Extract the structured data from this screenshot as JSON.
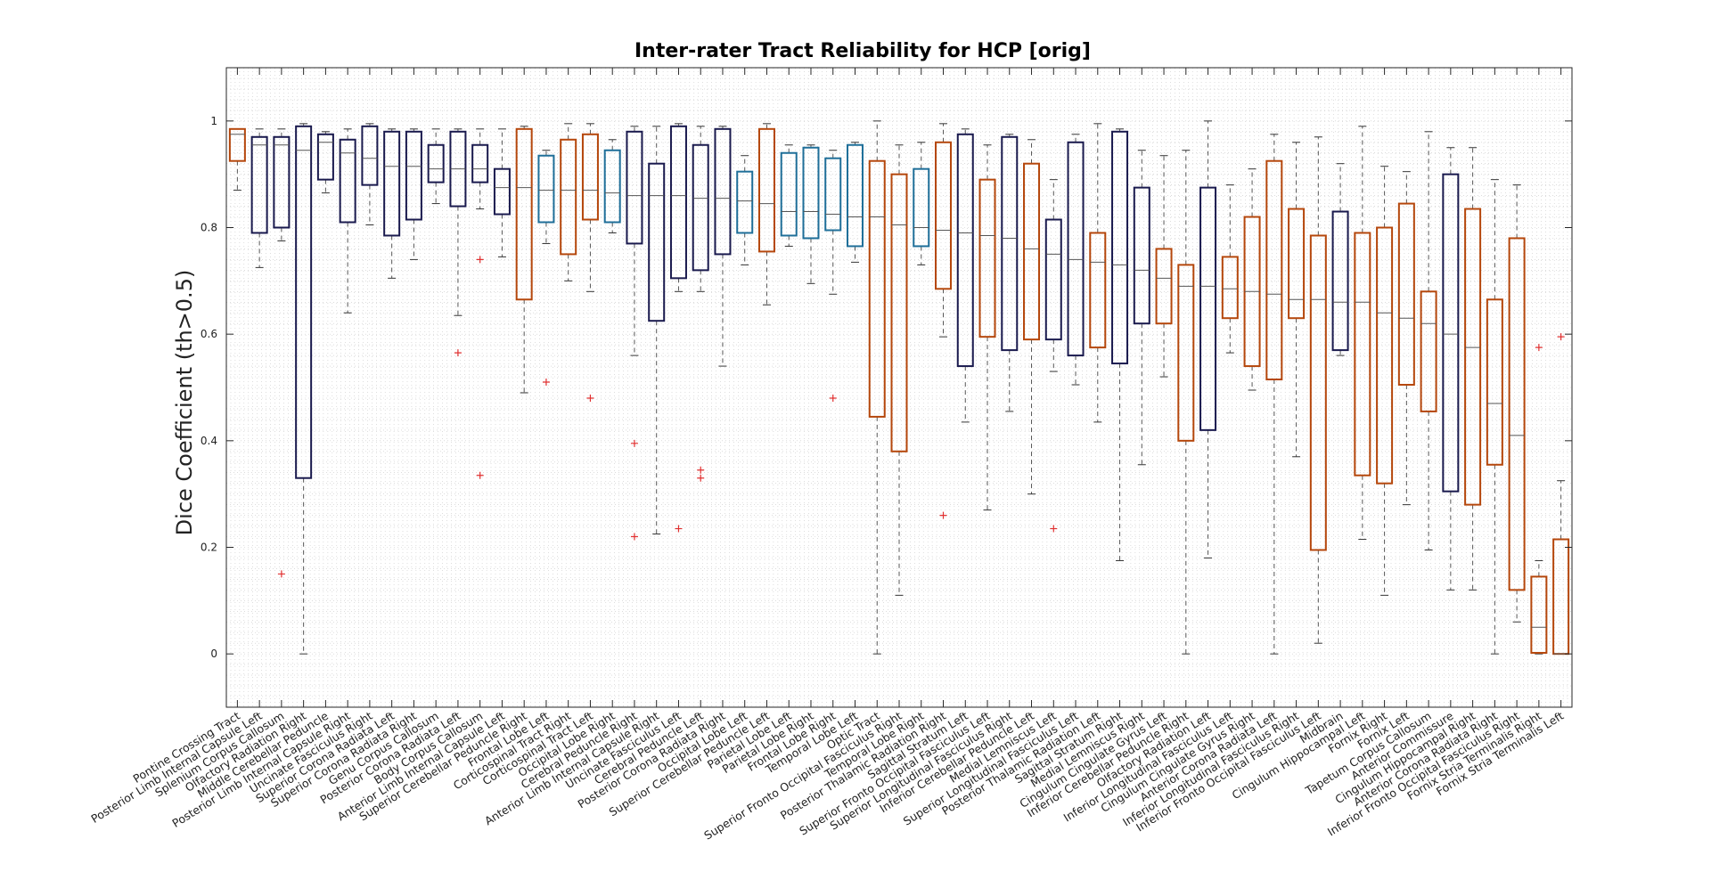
{
  "chart_data": {
    "type": "boxplot",
    "title": "Inter-rater Tract Reliability for HCP [orig]",
    "xlabel": "",
    "ylabel": "Dice Coefficient (th>0.5)",
    "ylim": [
      -0.1,
      1.1
    ],
    "yticks": [
      0,
      0.2,
      0.4,
      0.6,
      0.8,
      1
    ],
    "grid": true,
    "legend": "none",
    "colors": {
      "navy": "#1a1a4e",
      "orange": "#b5470c",
      "blue": "#1f6f99",
      "outlier": "#e03030",
      "whisker": "#555555",
      "median": "#555555"
    },
    "categories": [
      {
        "name": "Pontine Crossing Tract",
        "color": "orange",
        "q1": 0.925,
        "median": 0.975,
        "q3": 0.985,
        "lw": 0.87,
        "uw": 0.985,
        "outliers": []
      },
      {
        "name": "Posterior Limb Internal Capsule Left",
        "color": "navy",
        "q1": 0.79,
        "median": 0.955,
        "q3": 0.97,
        "lw": 0.725,
        "uw": 0.985,
        "outliers": []
      },
      {
        "name": "Splenium Corpus Callosum",
        "color": "navy",
        "q1": 0.8,
        "median": 0.955,
        "q3": 0.97,
        "lw": 0.775,
        "uw": 0.985,
        "outliers": [
          0.15
        ]
      },
      {
        "name": "Olfactory Radiation Right",
        "color": "navy",
        "q1": 0.33,
        "median": 0.945,
        "q3": 0.99,
        "lw": 0.0,
        "uw": 0.995,
        "outliers": []
      },
      {
        "name": "Middle Cerebellar Peduncle",
        "color": "navy",
        "q1": 0.89,
        "median": 0.96,
        "q3": 0.975,
        "lw": 0.865,
        "uw": 0.98,
        "outliers": []
      },
      {
        "name": "Posterior Limb Internal Capsule Right",
        "color": "navy",
        "q1": 0.81,
        "median": 0.94,
        "q3": 0.965,
        "lw": 0.64,
        "uw": 0.985,
        "outliers": []
      },
      {
        "name": "Uncinate Fasciculus Right",
        "color": "navy",
        "q1": 0.88,
        "median": 0.93,
        "q3": 0.99,
        "lw": 0.805,
        "uw": 0.995,
        "outliers": []
      },
      {
        "name": "Superior Corona Radiata Left",
        "color": "navy",
        "q1": 0.785,
        "median": 0.915,
        "q3": 0.98,
        "lw": 0.705,
        "uw": 0.985,
        "outliers": []
      },
      {
        "name": "Superior Corona Radiata Right",
        "color": "navy",
        "q1": 0.815,
        "median": 0.915,
        "q3": 0.98,
        "lw": 0.74,
        "uw": 0.985,
        "outliers": []
      },
      {
        "name": "Genu Corpus Callosum",
        "color": "navy",
        "q1": 0.885,
        "median": 0.91,
        "q3": 0.955,
        "lw": 0.845,
        "uw": 0.985,
        "outliers": []
      },
      {
        "name": "Posterior Corona Radiata Left",
        "color": "navy",
        "q1": 0.84,
        "median": 0.91,
        "q3": 0.98,
        "lw": 0.635,
        "uw": 0.985,
        "outliers": [
          0.565
        ]
      },
      {
        "name": "Body Corpus Callosum",
        "color": "navy",
        "q1": 0.885,
        "median": 0.91,
        "q3": 0.955,
        "lw": 0.835,
        "uw": 0.985,
        "outliers": [
          0.74,
          0.335
        ]
      },
      {
        "name": "Anterior Limb Internal Capsule Left",
        "color": "navy",
        "q1": 0.825,
        "median": 0.875,
        "q3": 0.91,
        "lw": 0.745,
        "uw": 0.985,
        "outliers": []
      },
      {
        "name": "Superior Cerebellar Peduncle Right",
        "color": "orange",
        "q1": 0.665,
        "median": 0.875,
        "q3": 0.985,
        "lw": 0.49,
        "uw": 0.99,
        "outliers": []
      },
      {
        "name": "Frontal Lobe Left",
        "color": "blue",
        "q1": 0.81,
        "median": 0.87,
        "q3": 0.935,
        "lw": 0.77,
        "uw": 0.945,
        "outliers": [
          0.51
        ]
      },
      {
        "name": "Corticospinal Tract Right",
        "color": "orange",
        "q1": 0.75,
        "median": 0.87,
        "q3": 0.965,
        "lw": 0.7,
        "uw": 0.995,
        "outliers": []
      },
      {
        "name": "Corticospinal Tract Left",
        "color": "orange",
        "q1": 0.815,
        "median": 0.87,
        "q3": 0.975,
        "lw": 0.68,
        "uw": 0.995,
        "outliers": [
          0.48
        ]
      },
      {
        "name": "Occipital Lobe Right",
        "color": "blue",
        "q1": 0.81,
        "median": 0.865,
        "q3": 0.945,
        "lw": 0.79,
        "uw": 0.965,
        "outliers": []
      },
      {
        "name": "Cerebral Peduncle Right",
        "color": "navy",
        "q1": 0.77,
        "median": 0.86,
        "q3": 0.98,
        "lw": 0.56,
        "uw": 0.99,
        "outliers": [
          0.395,
          0.22
        ]
      },
      {
        "name": "Anterior Limb Internal Capsule Right",
        "color": "navy",
        "q1": 0.625,
        "median": 0.86,
        "q3": 0.92,
        "lw": 0.225,
        "uw": 0.99,
        "outliers": []
      },
      {
        "name": "Uncinate Fasciculus Left",
        "color": "navy",
        "q1": 0.705,
        "median": 0.86,
        "q3": 0.99,
        "lw": 0.68,
        "uw": 0.995,
        "outliers": [
          0.235
        ]
      },
      {
        "name": "Cerebral Peduncle Left",
        "color": "navy",
        "q1": 0.72,
        "median": 0.855,
        "q3": 0.955,
        "lw": 0.68,
        "uw": 0.99,
        "outliers": [
          0.345,
          0.33
        ]
      },
      {
        "name": "Posterior Corona Radiata Right",
        "color": "navy",
        "q1": 0.75,
        "median": 0.855,
        "q3": 0.985,
        "lw": 0.54,
        "uw": 0.99,
        "outliers": []
      },
      {
        "name": "Occipital Lobe Left",
        "color": "blue",
        "q1": 0.79,
        "median": 0.85,
        "q3": 0.905,
        "lw": 0.73,
        "uw": 0.935,
        "outliers": []
      },
      {
        "name": "Superior Cerebellar Peduncle Left",
        "color": "orange",
        "q1": 0.755,
        "median": 0.845,
        "q3": 0.985,
        "lw": 0.655,
        "uw": 0.995,
        "outliers": []
      },
      {
        "name": "Parietal Lobe Left",
        "color": "blue",
        "q1": 0.785,
        "median": 0.83,
        "q3": 0.94,
        "lw": 0.765,
        "uw": 0.955,
        "outliers": []
      },
      {
        "name": "Parietal Lobe Right",
        "color": "blue",
        "q1": 0.78,
        "median": 0.83,
        "q3": 0.95,
        "lw": 0.695,
        "uw": 0.955,
        "outliers": []
      },
      {
        "name": "Frontal Lobe Right",
        "color": "blue",
        "q1": 0.795,
        "median": 0.825,
        "q3": 0.93,
        "lw": 0.675,
        "uw": 0.945,
        "outliers": [
          0.48
        ]
      },
      {
        "name": "Temporal Lobe Left",
        "color": "blue",
        "q1": 0.765,
        "median": 0.82,
        "q3": 0.955,
        "lw": 0.735,
        "uw": 0.96,
        "outliers": []
      },
      {
        "name": "Optic Tract",
        "color": "orange",
        "q1": 0.445,
        "median": 0.82,
        "q3": 0.925,
        "lw": 0.0,
        "uw": 1.0,
        "outliers": []
      },
      {
        "name": "Superior Fronto Occipital Fasciculus Right",
        "color": "orange",
        "q1": 0.38,
        "median": 0.805,
        "q3": 0.9,
        "lw": 0.11,
        "uw": 0.955,
        "outliers": []
      },
      {
        "name": "Temporal Lobe Right",
        "color": "blue",
        "q1": 0.765,
        "median": 0.8,
        "q3": 0.91,
        "lw": 0.73,
        "uw": 0.96,
        "outliers": []
      },
      {
        "name": "Posterior Thalamic Radiation Right",
        "color": "orange",
        "q1": 0.685,
        "median": 0.795,
        "q3": 0.96,
        "lw": 0.595,
        "uw": 0.995,
        "outliers": [
          0.26
        ]
      },
      {
        "name": "Sagittal Stratum Left",
        "color": "navy",
        "q1": 0.54,
        "median": 0.79,
        "q3": 0.975,
        "lw": 0.435,
        "uw": 0.985,
        "outliers": []
      },
      {
        "name": "Superior Fronto Occipital Fasciculus Left",
        "color": "orange",
        "q1": 0.595,
        "median": 0.785,
        "q3": 0.89,
        "lw": 0.27,
        "uw": 0.955,
        "outliers": []
      },
      {
        "name": "Superior Longitudinal Fasciculus Right",
        "color": "navy",
        "q1": 0.57,
        "median": 0.78,
        "q3": 0.97,
        "lw": 0.455,
        "uw": 0.975,
        "outliers": []
      },
      {
        "name": "Inferior Cerebellar Peduncle Left",
        "color": "orange",
        "q1": 0.59,
        "median": 0.76,
        "q3": 0.92,
        "lw": 0.3,
        "uw": 0.965,
        "outliers": []
      },
      {
        "name": "Medial Lemniscus Left",
        "color": "navy",
        "q1": 0.59,
        "median": 0.75,
        "q3": 0.815,
        "lw": 0.53,
        "uw": 0.89,
        "outliers": [
          0.235
        ]
      },
      {
        "name": "Superior Longitudinal Fasciculus Left",
        "color": "navy",
        "q1": 0.56,
        "median": 0.74,
        "q3": 0.96,
        "lw": 0.505,
        "uw": 0.975,
        "outliers": []
      },
      {
        "name": "Posterior Thalamic Radiation Left",
        "color": "orange",
        "q1": 0.575,
        "median": 0.735,
        "q3": 0.79,
        "lw": 0.435,
        "uw": 0.995,
        "outliers": []
      },
      {
        "name": "Sagittal Stratum Right",
        "color": "navy",
        "q1": 0.545,
        "median": 0.73,
        "q3": 0.98,
        "lw": 0.175,
        "uw": 0.985,
        "outliers": []
      },
      {
        "name": "Medial Lemniscus Right",
        "color": "navy",
        "q1": 0.62,
        "median": 0.72,
        "q3": 0.875,
        "lw": 0.355,
        "uw": 0.945,
        "outliers": []
      },
      {
        "name": "Cingulum Cingulate Gyrus Left",
        "color": "orange",
        "q1": 0.62,
        "median": 0.705,
        "q3": 0.76,
        "lw": 0.52,
        "uw": 0.935,
        "outliers": []
      },
      {
        "name": "Inferior Cerebellar Peduncle Right",
        "color": "orange",
        "q1": 0.4,
        "median": 0.69,
        "q3": 0.73,
        "lw": 0.0,
        "uw": 0.945,
        "outliers": []
      },
      {
        "name": "Olfactory Radiation Left",
        "color": "navy",
        "q1": 0.42,
        "median": 0.69,
        "q3": 0.875,
        "lw": 0.18,
        "uw": 1.0,
        "outliers": []
      },
      {
        "name": "Inferior Longitudinal Fasciculus Left",
        "color": "orange",
        "q1": 0.63,
        "median": 0.685,
        "q3": 0.745,
        "lw": 0.565,
        "uw": 0.88,
        "outliers": []
      },
      {
        "name": "Cingulum Cingulate Gyrus Right",
        "color": "orange",
        "q1": 0.54,
        "median": 0.68,
        "q3": 0.82,
        "lw": 0.495,
        "uw": 0.91,
        "outliers": []
      },
      {
        "name": "Anterior Corona Radiata Left",
        "color": "orange",
        "q1": 0.515,
        "median": 0.675,
        "q3": 0.925,
        "lw": 0.0,
        "uw": 0.975,
        "outliers": []
      },
      {
        "name": "Inferior Longitudinal Fasciculus Right",
        "color": "orange",
        "q1": 0.63,
        "median": 0.665,
        "q3": 0.835,
        "lw": 0.37,
        "uw": 0.96,
        "outliers": []
      },
      {
        "name": "Inferior Fronto Occipital Fasciculus Left",
        "color": "orange",
        "q1": 0.195,
        "median": 0.665,
        "q3": 0.785,
        "lw": 0.02,
        "uw": 0.97,
        "outliers": []
      },
      {
        "name": "Midbrain",
        "color": "navy",
        "q1": 0.57,
        "median": 0.66,
        "q3": 0.83,
        "lw": 0.56,
        "uw": 0.92,
        "outliers": []
      },
      {
        "name": "Cingulum Hippocampal Left",
        "color": "orange",
        "q1": 0.335,
        "median": 0.66,
        "q3": 0.79,
        "lw": 0.215,
        "uw": 0.99,
        "outliers": []
      },
      {
        "name": "Fornix Right",
        "color": "orange",
        "q1": 0.32,
        "median": 0.64,
        "q3": 0.8,
        "lw": 0.11,
        "uw": 0.915,
        "outliers": []
      },
      {
        "name": "Fornix Left",
        "color": "orange",
        "q1": 0.505,
        "median": 0.63,
        "q3": 0.845,
        "lw": 0.28,
        "uw": 0.905,
        "outliers": []
      },
      {
        "name": "Tapetum Corpus Callosum",
        "color": "orange",
        "q1": 0.455,
        "median": 0.62,
        "q3": 0.68,
        "lw": 0.195,
        "uw": 0.98,
        "outliers": []
      },
      {
        "name": "Anterior Commissure",
        "color": "navy",
        "q1": 0.305,
        "median": 0.6,
        "q3": 0.9,
        "lw": 0.12,
        "uw": 0.95,
        "outliers": []
      },
      {
        "name": "Cingulum Hippocampal Right",
        "color": "orange",
        "q1": 0.28,
        "median": 0.575,
        "q3": 0.835,
        "lw": 0.12,
        "uw": 0.95,
        "outliers": []
      },
      {
        "name": "Anterior Corona Radiata Right",
        "color": "orange",
        "q1": 0.355,
        "median": 0.47,
        "q3": 0.665,
        "lw": 0.0,
        "uw": 0.89,
        "outliers": []
      },
      {
        "name": "Inferior Fronto Occipital Fasciculus Right",
        "color": "orange",
        "q1": 0.12,
        "median": 0.41,
        "q3": 0.78,
        "lw": 0.06,
        "uw": 0.88,
        "outliers": []
      },
      {
        "name": "Fornix Stria Terminalis Right",
        "color": "orange",
        "q1": 0.002,
        "median": 0.05,
        "q3": 0.145,
        "lw": 0.0,
        "uw": 0.175,
        "outliers": [
          0.575
        ]
      },
      {
        "name": "Fornix Stria Terminalis Left",
        "color": "orange",
        "q1": 0.0,
        "median": 0.0,
        "q3": 0.215,
        "lw": 0.0,
        "uw": 0.325,
        "outliers": [
          0.595
        ]
      }
    ]
  }
}
